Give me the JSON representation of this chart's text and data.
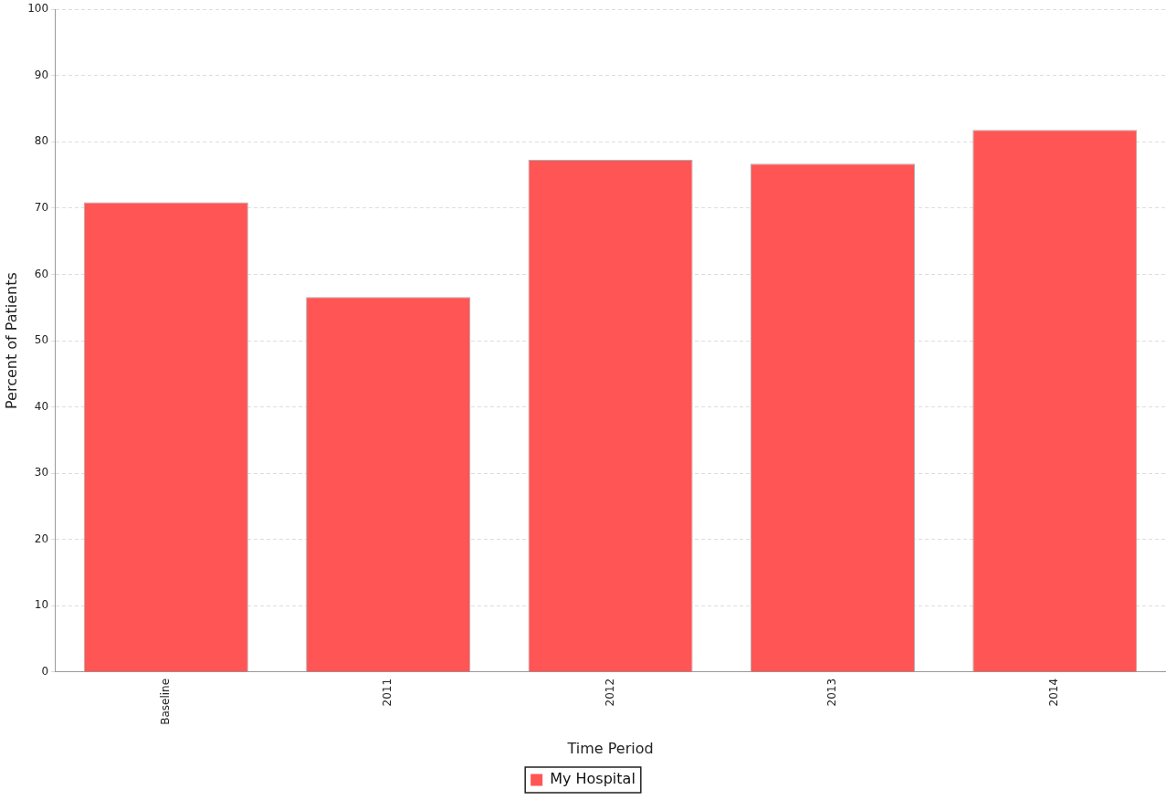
{
  "chart_data": {
    "type": "bar",
    "xlabel": "Time Period",
    "ylabel": "Percent of Patients",
    "categories": [
      "Baseline",
      "2011",
      "2012",
      "2013",
      "2014"
    ],
    "series": [
      {
        "name": "My Hospital",
        "color": "#ff5555",
        "values": [
          70.9,
          56.6,
          77.3,
          76.7,
          81.8
        ]
      }
    ],
    "ylim": [
      0,
      100
    ],
    "yticks": [
      0,
      10,
      20,
      30,
      40,
      50,
      60,
      70,
      80,
      90,
      100
    ],
    "grid": "y",
    "legend": "bottom"
  }
}
